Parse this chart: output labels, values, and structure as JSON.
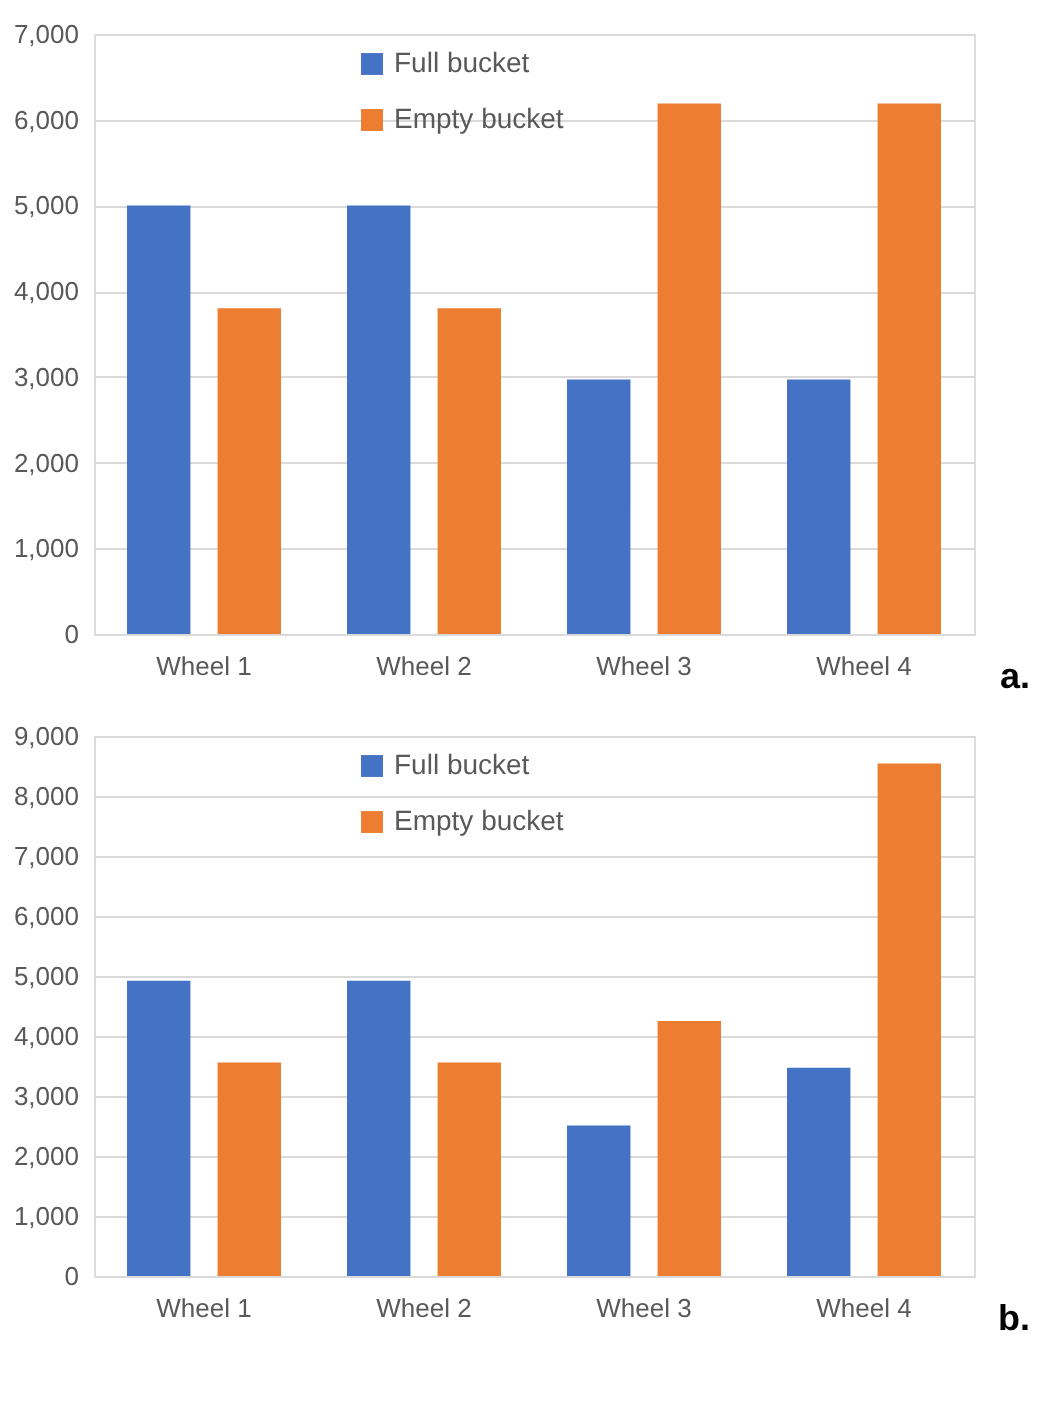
{
  "chart_data": [
    {
      "type": "bar",
      "categories": [
        "Wheel 1",
        "Wheel 2",
        "Wheel 3",
        "Wheel 4"
      ],
      "series": [
        {
          "name": "Full bucket",
          "color": "#4472c4",
          "values": [
            5000,
            5000,
            2970,
            2970
          ]
        },
        {
          "name": "Empty bucket",
          "color": "#ed7d31",
          "values": [
            3800,
            3800,
            6190,
            6190
          ]
        }
      ],
      "ylim": [
        0,
        7000
      ],
      "yticks": [
        {
          "value": 0,
          "label": "0"
        },
        {
          "value": 1000,
          "label": "1,000"
        },
        {
          "value": 2000,
          "label": "2,000"
        },
        {
          "value": 3000,
          "label": "3,000"
        },
        {
          "value": 4000,
          "label": "4,000"
        },
        {
          "value": 5000,
          "label": "5,000"
        },
        {
          "value": 6000,
          "label": "6,000"
        },
        {
          "value": 7000,
          "label": "7,000"
        }
      ],
      "grid": "y",
      "legend": "top",
      "annotations": [
        "a."
      ]
    },
    {
      "type": "bar",
      "categories": [
        "Wheel 1",
        "Wheel 2",
        "Wheel 3",
        "Wheel 4"
      ],
      "series": [
        {
          "name": "Full bucket",
          "color": "#4472c4",
          "values": [
            4920,
            4920,
            2510,
            3470
          ]
        },
        {
          "name": "Empty bucket",
          "color": "#ed7d31",
          "values": [
            3560,
            3560,
            4250,
            8540
          ]
        }
      ],
      "ylim": [
        0,
        9000
      ],
      "yticks": [
        {
          "value": 0,
          "label": "0"
        },
        {
          "value": 1000,
          "label": "1,000"
        },
        {
          "value": 2000,
          "label": "2,000"
        },
        {
          "value": 3000,
          "label": "3,000"
        },
        {
          "value": 4000,
          "label": "4,000"
        },
        {
          "value": 5000,
          "label": "5,000"
        },
        {
          "value": 6000,
          "label": "6,000"
        },
        {
          "value": 7000,
          "label": "7,000"
        },
        {
          "value": 8000,
          "label": "8,000"
        },
        {
          "value": 9000,
          "label": "9,000"
        }
      ],
      "grid": "y",
      "legend": "top",
      "annotations": [
        "b."
      ]
    }
  ]
}
